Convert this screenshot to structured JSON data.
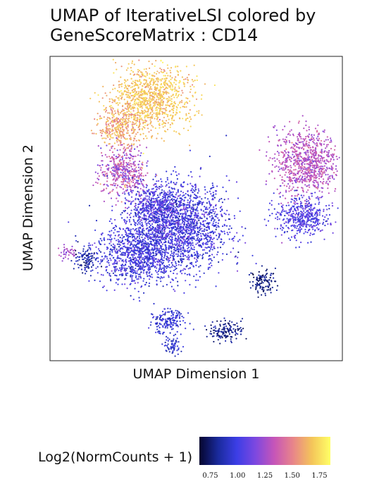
{
  "title_lines": [
    "UMAP of IterativeLSI colored by",
    "GeneScoreMatrix : CD14"
  ],
  "chart_data": {
    "type": "scatter",
    "title": "UMAP of IterativeLSI colored by GeneScoreMatrix : CD14",
    "xlabel": "UMAP Dimension 1",
    "ylabel": "UMAP Dimension 2",
    "grid": false,
    "axis_ticks_shown": false,
    "color_legend": {
      "title": "Log2(NormCounts + 1)",
      "placement": "bottom",
      "range": [
        0.65,
        1.85
      ],
      "ticks": [
        0.75,
        1.0,
        1.25,
        1.5,
        1.75
      ],
      "tick_labels": [
        "0.75",
        "1.00",
        "1.25",
        "1.50",
        "1.75"
      ],
      "colors": [
        "#05052e",
        "#1a2a9c",
        "#3c3ee6",
        "#7d48e0",
        "#c655b8",
        "#e8858a",
        "#f4c45a",
        "#ffff66"
      ]
    },
    "xlim": [
      0,
      100
    ],
    "ylim": [
      0,
      100
    ],
    "clusters": [
      {
        "cx": 35,
        "cy": 86,
        "sx": 6.5,
        "sy": 5.5,
        "value": 1.68,
        "vsd": 0.07
      },
      {
        "cx": 24,
        "cy": 77,
        "sx": 3.5,
        "sy": 3.5,
        "value": 1.6,
        "vsd": 0.08
      },
      {
        "cx": 25,
        "cy": 62,
        "sx": 4,
        "sy": 4,
        "value": 1.3,
        "vsd": 0.12
      },
      {
        "cx": 45,
        "cy": 44,
        "sx": 8,
        "sy": 7,
        "value": 1.0,
        "vsd": 0.09
      },
      {
        "cx": 30,
        "cy": 35,
        "sx": 7,
        "sy": 5,
        "value": 1.0,
        "vsd": 0.08
      },
      {
        "cx": 36,
        "cy": 50,
        "sx": 5,
        "sy": 4,
        "value": 1.05,
        "vsd": 0.1
      },
      {
        "cx": 12,
        "cy": 33,
        "sx": 2,
        "sy": 2,
        "value": 0.85,
        "vsd": 0.07
      },
      {
        "cx": 6,
        "cy": 35,
        "sx": 1.2,
        "sy": 1.2,
        "value": 1.25,
        "vsd": 0.05
      },
      {
        "cx": 88,
        "cy": 65,
        "sx": 5.5,
        "sy": 5.5,
        "value": 1.3,
        "vsd": 0.07
      },
      {
        "cx": 86,
        "cy": 47,
        "sx": 4.5,
        "sy": 3.5,
        "value": 1.05,
        "vsd": 0.07
      },
      {
        "cx": 73,
        "cy": 26,
        "sx": 2,
        "sy": 2,
        "value": 0.78,
        "vsd": 0.05
      },
      {
        "cx": 60,
        "cy": 10,
        "sx": 3,
        "sy": 1.6,
        "value": 0.8,
        "vsd": 0.06
      },
      {
        "cx": 42,
        "cy": 5,
        "sx": 1.5,
        "sy": 1.5,
        "value": 0.92,
        "vsd": 0.05
      },
      {
        "cx": 40,
        "cy": 13,
        "sx": 3,
        "sy": 2,
        "value": 0.95,
        "vsd": 0.06
      }
    ]
  }
}
